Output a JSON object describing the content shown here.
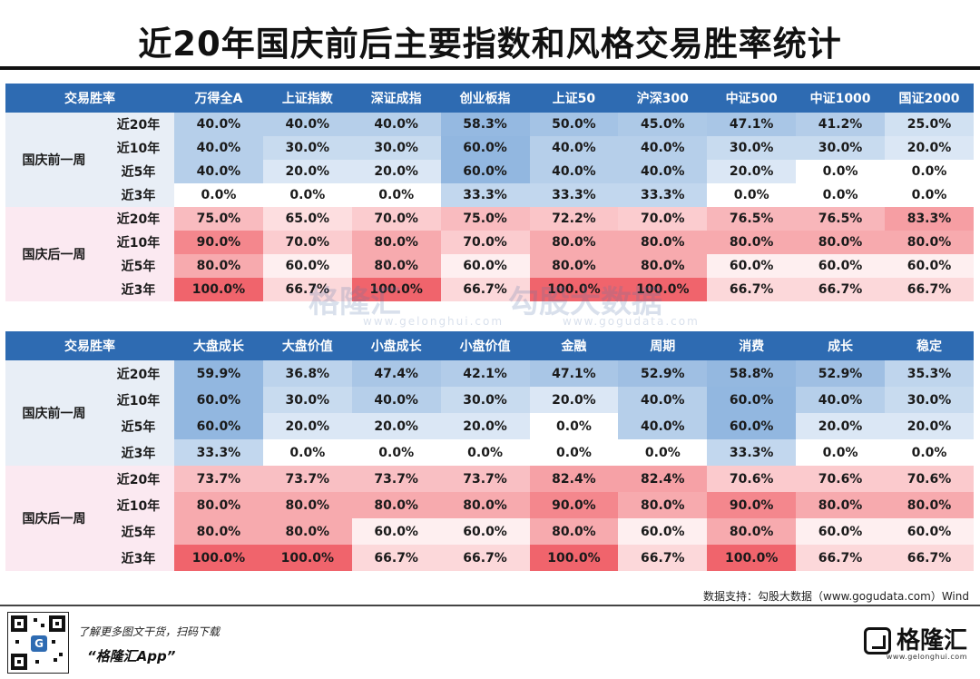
{
  "title": "近20年国庆前后主要指数和风格交易胜率统计",
  "colors": {
    "header_blue": "#2e6bb2",
    "before_tint": "#e8eef6",
    "after_tint": "#fbe9f1",
    "blue_max": "#8cb3de",
    "red_max": "#f0646c"
  },
  "chart_data": [
    {
      "type": "table",
      "corner_label": "交易胜率",
      "columns": [
        "万得全A",
        "上证指数",
        "深证成指",
        "创业板指",
        "上证50",
        "沪深300",
        "中证500",
        "中证1000",
        "国证2000"
      ],
      "groups": [
        {
          "label": "国庆前一周",
          "tone": "before",
          "rows": [
            {
              "period": "近20年",
              "values": [
                "40.0%",
                "40.0%",
                "40.0%",
                "58.3%",
                "50.0%",
                "45.0%",
                "47.1%",
                "41.2%",
                "25.0%"
              ]
            },
            {
              "period": "近10年",
              "values": [
                "40.0%",
                "30.0%",
                "30.0%",
                "60.0%",
                "40.0%",
                "40.0%",
                "30.0%",
                "30.0%",
                "20.0%"
              ]
            },
            {
              "period": "近5年",
              "values": [
                "40.0%",
                "20.0%",
                "20.0%",
                "60.0%",
                "40.0%",
                "40.0%",
                "20.0%",
                "0.0%",
                "0.0%"
              ]
            },
            {
              "period": "近3年",
              "values": [
                "0.0%",
                "0.0%",
                "0.0%",
                "33.3%",
                "33.3%",
                "33.3%",
                "0.0%",
                "0.0%",
                "0.0%"
              ]
            }
          ]
        },
        {
          "label": "国庆后一周",
          "tone": "after",
          "rows": [
            {
              "period": "近20年",
              "values": [
                "75.0%",
                "65.0%",
                "70.0%",
                "75.0%",
                "72.2%",
                "70.0%",
                "76.5%",
                "76.5%",
                "83.3%"
              ]
            },
            {
              "period": "近10年",
              "values": [
                "90.0%",
                "70.0%",
                "80.0%",
                "70.0%",
                "80.0%",
                "80.0%",
                "80.0%",
                "80.0%",
                "80.0%"
              ]
            },
            {
              "period": "近5年",
              "values": [
                "80.0%",
                "60.0%",
                "80.0%",
                "60.0%",
                "80.0%",
                "80.0%",
                "60.0%",
                "60.0%",
                "60.0%"
              ]
            },
            {
              "period": "近3年",
              "values": [
                "100.0%",
                "66.7%",
                "100.0%",
                "66.7%",
                "100.0%",
                "100.0%",
                "66.7%",
                "66.7%",
                "66.7%"
              ]
            }
          ]
        }
      ]
    },
    {
      "type": "table",
      "corner_label": "交易胜率",
      "columns": [
        "大盘成长",
        "大盘价值",
        "小盘成长",
        "小盘价值",
        "金融",
        "周期",
        "消费",
        "成长",
        "稳定"
      ],
      "groups": [
        {
          "label": "国庆前一周",
          "tone": "before",
          "rows": [
            {
              "period": "近20年",
              "values": [
                "59.9%",
                "36.8%",
                "47.4%",
                "42.1%",
                "47.1%",
                "52.9%",
                "58.8%",
                "52.9%",
                "35.3%"
              ]
            },
            {
              "period": "近10年",
              "values": [
                "60.0%",
                "30.0%",
                "40.0%",
                "30.0%",
                "20.0%",
                "40.0%",
                "60.0%",
                "40.0%",
                "30.0%"
              ]
            },
            {
              "period": "近5年",
              "values": [
                "60.0%",
                "20.0%",
                "20.0%",
                "20.0%",
                "0.0%",
                "40.0%",
                "60.0%",
                "20.0%",
                "20.0%"
              ]
            },
            {
              "period": "近3年",
              "values": [
                "33.3%",
                "0.0%",
                "0.0%",
                "0.0%",
                "0.0%",
                "0.0%",
                "33.3%",
                "0.0%",
                "0.0%"
              ]
            }
          ]
        },
        {
          "label": "国庆后一周",
          "tone": "after",
          "rows": [
            {
              "period": "近20年",
              "values": [
                "73.7%",
                "73.7%",
                "73.7%",
                "73.7%",
                "82.4%",
                "82.4%",
                "70.6%",
                "70.6%",
                "70.6%"
              ]
            },
            {
              "period": "近10年",
              "values": [
                "80.0%",
                "80.0%",
                "80.0%",
                "80.0%",
                "90.0%",
                "80.0%",
                "90.0%",
                "80.0%",
                "80.0%"
              ]
            },
            {
              "period": "近5年",
              "values": [
                "80.0%",
                "80.0%",
                "60.0%",
                "60.0%",
                "80.0%",
                "60.0%",
                "80.0%",
                "60.0%",
                "60.0%"
              ]
            },
            {
              "period": "近3年",
              "values": [
                "100.0%",
                "100.0%",
                "66.7%",
                "66.7%",
                "100.0%",
                "66.7%",
                "100.0%",
                "66.7%",
                "66.7%"
              ]
            }
          ]
        }
      ]
    }
  ],
  "footer": {
    "source": "数据支持：勾股大数据（www.gogudata.com）Wind",
    "promo_line1": "了解更多图文干货，扫码下载",
    "promo_line2": "“格隆汇App”",
    "brand_name": "格隆汇",
    "brand_url": "www.gelonghui.com",
    "qr_icon_letter": "G"
  },
  "watermark": {
    "left_text": "格隆汇",
    "left_url": "www.gelonghui.com",
    "right_text": "勾股大数据",
    "right_url": "www.gogudata.com"
  }
}
